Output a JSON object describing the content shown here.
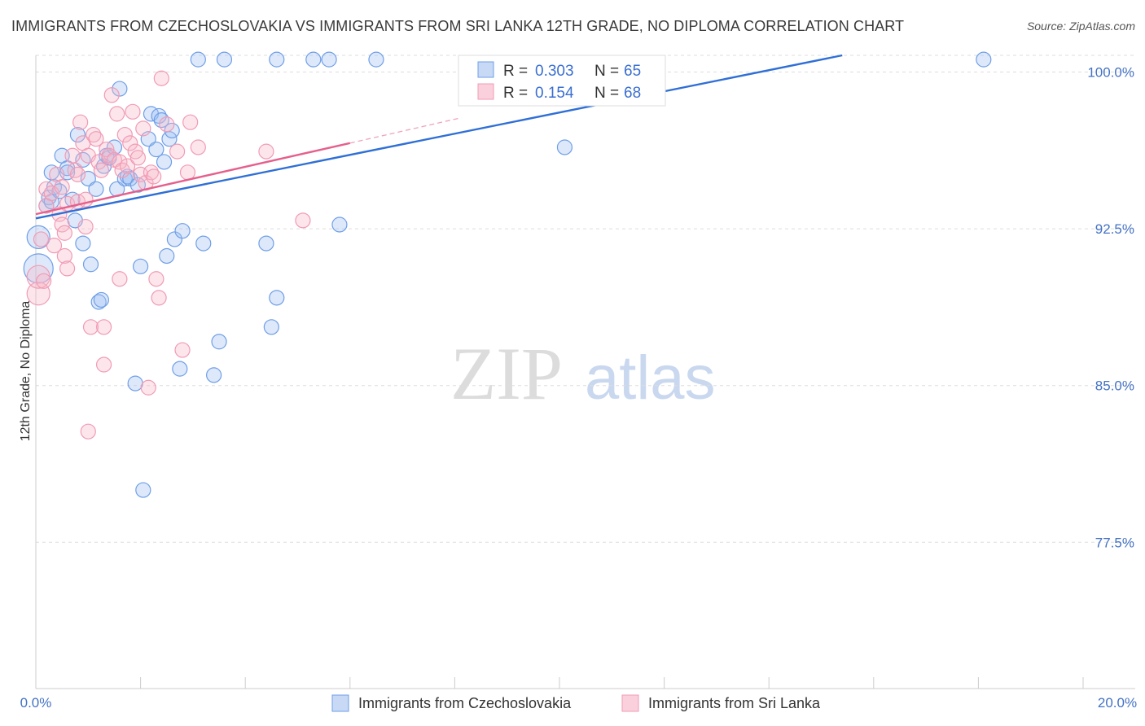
{
  "title": "IMMIGRANTS FROM CZECHOSLOVAKIA VS IMMIGRANTS FROM SRI LANKA 12TH GRADE, NO DIPLOMA CORRELATION CHART",
  "source": "Source: ZipAtlas.com",
  "watermark": {
    "zip": "ZIP",
    "atlas": "atlas"
  },
  "colors": {
    "blue": "#6f9ee8",
    "blue_line": "#2f6fd6",
    "pink": "#f19bb5",
    "pink_line": "#e5608c",
    "tick": "#4472c4",
    "grid": "#dddddd"
  },
  "legend": {
    "series1": {
      "r_label": "R =",
      "r_value": "0.303",
      "n_label": "N =",
      "n_value": "65"
    },
    "series2": {
      "r_label": "R =",
      "r_value": "0.154",
      "n_label": "N =",
      "n_value": "68"
    }
  },
  "chart_data": {
    "type": "scatter",
    "title": "IMMIGRANTS FROM CZECHOSLOVAKIA VS IMMIGRANTS FROM SRI LANKA 12TH GRADE, NO DIPLOMA CORRELATION CHART",
    "xlabel": "",
    "ylabel": "12th Grade, No Diploma",
    "xlim": [
      0,
      20
    ],
    "ylim": [
      70.5,
      100.8
    ],
    "x_tick_labels": [
      "0.0%",
      "20.0%"
    ],
    "y_ticks": [
      77.5,
      85.0,
      92.5,
      100.0
    ],
    "y_tick_labels": [
      "77.5%",
      "85.0%",
      "92.5%",
      "100.0%"
    ],
    "series": [
      {
        "name": "Immigrants from Czechoslovakia",
        "R": 0.303,
        "N": 65,
        "trend": {
          "x": [
            0,
            15.4
          ],
          "y": [
            93.0,
            100.8
          ]
        },
        "points": [
          {
            "x": 0.05,
            "y": 92.1,
            "s": 14
          },
          {
            "x": 0.05,
            "y": 90.6,
            "s": 18
          },
          {
            "x": 0.2,
            "y": 93.6
          },
          {
            "x": 0.25,
            "y": 94.0
          },
          {
            "x": 0.3,
            "y": 93.8
          },
          {
            "x": 0.3,
            "y": 95.2
          },
          {
            "x": 0.35,
            "y": 94.5
          },
          {
            "x": 0.45,
            "y": 94.3
          },
          {
            "x": 0.5,
            "y": 96.0
          },
          {
            "x": 0.6,
            "y": 95.4
          },
          {
            "x": 0.6,
            "y": 95.2
          },
          {
            "x": 0.7,
            "y": 93.9
          },
          {
            "x": 0.75,
            "y": 92.9
          },
          {
            "x": 0.8,
            "y": 97.0
          },
          {
            "x": 0.9,
            "y": 91.8
          },
          {
            "x": 0.9,
            "y": 95.8
          },
          {
            "x": 1.0,
            "y": 94.9
          },
          {
            "x": 1.05,
            "y": 90.8
          },
          {
            "x": 1.15,
            "y": 94.4
          },
          {
            "x": 1.2,
            "y": 89.0
          },
          {
            "x": 1.25,
            "y": 89.1
          },
          {
            "x": 1.3,
            "y": 95.5
          },
          {
            "x": 1.35,
            "y": 96.0
          },
          {
            "x": 1.4,
            "y": 95.9
          },
          {
            "x": 1.5,
            "y": 96.4
          },
          {
            "x": 1.55,
            "y": 94.4
          },
          {
            "x": 1.6,
            "y": 99.2
          },
          {
            "x": 1.7,
            "y": 94.9
          },
          {
            "x": 1.75,
            "y": 95.0
          },
          {
            "x": 1.8,
            "y": 94.9
          },
          {
            "x": 1.9,
            "y": 85.1
          },
          {
            "x": 1.95,
            "y": 94.6
          },
          {
            "x": 2.0,
            "y": 90.7
          },
          {
            "x": 2.05,
            "y": 80.0
          },
          {
            "x": 2.15,
            "y": 96.8
          },
          {
            "x": 2.2,
            "y": 98.0
          },
          {
            "x": 2.3,
            "y": 96.3
          },
          {
            "x": 2.35,
            "y": 97.9
          },
          {
            "x": 2.4,
            "y": 97.7
          },
          {
            "x": 2.45,
            "y": 95.7
          },
          {
            "x": 2.5,
            "y": 91.2
          },
          {
            "x": 2.55,
            "y": 96.8
          },
          {
            "x": 2.6,
            "y": 97.2
          },
          {
            "x": 2.65,
            "y": 92.0
          },
          {
            "x": 2.75,
            "y": 85.8
          },
          {
            "x": 2.8,
            "y": 92.4
          },
          {
            "x": 3.1,
            "y": 100.6
          },
          {
            "x": 3.2,
            "y": 91.8
          },
          {
            "x": 3.4,
            "y": 85.5
          },
          {
            "x": 3.5,
            "y": 87.1
          },
          {
            "x": 3.6,
            "y": 100.6
          },
          {
            "x": 4.4,
            "y": 91.8
          },
          {
            "x": 4.5,
            "y": 87.8
          },
          {
            "x": 4.6,
            "y": 89.2
          },
          {
            "x": 4.6,
            "y": 100.6
          },
          {
            "x": 5.3,
            "y": 100.6
          },
          {
            "x": 5.6,
            "y": 100.6
          },
          {
            "x": 5.8,
            "y": 92.7
          },
          {
            "x": 6.5,
            "y": 100.6
          },
          {
            "x": 10.1,
            "y": 96.4
          },
          {
            "x": 18.1,
            "y": 100.6
          }
        ]
      },
      {
        "name": "Immigrants from Sri Lanka",
        "R": 0.154,
        "N": 68,
        "trend": {
          "x": [
            0,
            6.0
          ],
          "y": [
            93.2,
            96.6
          ]
        },
        "trend_dashed": {
          "x": [
            6.0,
            8.1
          ],
          "y": [
            96.6,
            97.8
          ]
        },
        "points": [
          {
            "x": 0.05,
            "y": 89.4,
            "s": 14
          },
          {
            "x": 0.05,
            "y": 90.2,
            "s": 14
          },
          {
            "x": 0.1,
            "y": 92.0
          },
          {
            "x": 0.15,
            "y": 90.0
          },
          {
            "x": 0.2,
            "y": 94.4
          },
          {
            "x": 0.2,
            "y": 93.6
          },
          {
            "x": 0.3,
            "y": 94.2
          },
          {
            "x": 0.35,
            "y": 91.7
          },
          {
            "x": 0.4,
            "y": 95.1
          },
          {
            "x": 0.45,
            "y": 93.2
          },
          {
            "x": 0.5,
            "y": 92.7
          },
          {
            "x": 0.5,
            "y": 94.5
          },
          {
            "x": 0.55,
            "y": 92.3
          },
          {
            "x": 0.55,
            "y": 91.2
          },
          {
            "x": 0.6,
            "y": 93.7
          },
          {
            "x": 0.6,
            "y": 90.6
          },
          {
            "x": 0.7,
            "y": 96.0
          },
          {
            "x": 0.75,
            "y": 95.3
          },
          {
            "x": 0.8,
            "y": 93.8
          },
          {
            "x": 0.8,
            "y": 95.1
          },
          {
            "x": 0.85,
            "y": 97.6
          },
          {
            "x": 0.9,
            "y": 96.6
          },
          {
            "x": 0.95,
            "y": 93.9
          },
          {
            "x": 0.95,
            "y": 92.6
          },
          {
            "x": 1.0,
            "y": 96.0
          },
          {
            "x": 1.0,
            "y": 82.8
          },
          {
            "x": 1.05,
            "y": 87.8
          },
          {
            "x": 1.1,
            "y": 97.0
          },
          {
            "x": 1.15,
            "y": 96.8
          },
          {
            "x": 1.2,
            "y": 95.7
          },
          {
            "x": 1.25,
            "y": 95.3
          },
          {
            "x": 1.3,
            "y": 86.0
          },
          {
            "x": 1.3,
            "y": 87.8
          },
          {
            "x": 1.35,
            "y": 96.3
          },
          {
            "x": 1.4,
            "y": 96.0
          },
          {
            "x": 1.45,
            "y": 98.9
          },
          {
            "x": 1.5,
            "y": 95.8
          },
          {
            "x": 1.55,
            "y": 98.0
          },
          {
            "x": 1.6,
            "y": 95.7
          },
          {
            "x": 1.6,
            "y": 90.1
          },
          {
            "x": 1.65,
            "y": 95.3
          },
          {
            "x": 1.7,
            "y": 97.0
          },
          {
            "x": 1.75,
            "y": 95.5
          },
          {
            "x": 1.8,
            "y": 96.6
          },
          {
            "x": 1.85,
            "y": 98.1
          },
          {
            "x": 1.9,
            "y": 96.2
          },
          {
            "x": 1.95,
            "y": 95.9
          },
          {
            "x": 2.0,
            "y": 95.1
          },
          {
            "x": 2.05,
            "y": 97.3
          },
          {
            "x": 2.1,
            "y": 94.7
          },
          {
            "x": 2.15,
            "y": 84.9
          },
          {
            "x": 2.2,
            "y": 95.2
          },
          {
            "x": 2.25,
            "y": 95.0
          },
          {
            "x": 2.3,
            "y": 90.1
          },
          {
            "x": 2.35,
            "y": 89.2
          },
          {
            "x": 2.4,
            "y": 99.7
          },
          {
            "x": 2.5,
            "y": 97.5
          },
          {
            "x": 2.7,
            "y": 96.2
          },
          {
            "x": 2.8,
            "y": 86.7
          },
          {
            "x": 2.9,
            "y": 95.2
          },
          {
            "x": 2.95,
            "y": 97.6
          },
          {
            "x": 3.1,
            "y": 96.4
          },
          {
            "x": 4.4,
            "y": 96.2
          },
          {
            "x": 5.1,
            "y": 92.9
          }
        ]
      }
    ]
  }
}
